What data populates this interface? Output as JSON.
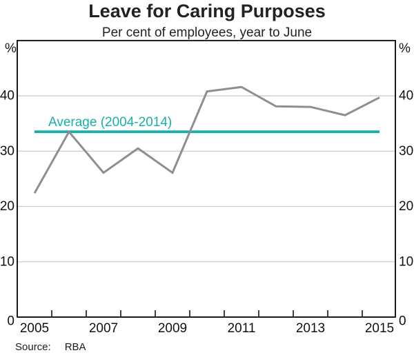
{
  "title": "Leave for Caring Purposes",
  "subtitle": "Per cent of employees, year to June",
  "source": {
    "label": "Source:",
    "value": "RBA"
  },
  "chart_data": {
    "type": "line",
    "title": "Leave for Caring Purposes",
    "subtitle": "Per cent of employees, year to June",
    "unit": "%",
    "x": [
      2005,
      2006,
      2007,
      2008,
      2009,
      2010,
      2011,
      2012,
      2013,
      2014,
      2015
    ],
    "series": [
      {
        "name": "Leave for caring purposes (per cent of employees)",
        "values": [
          22.4,
          33.5,
          26.1,
          30.5,
          26.1,
          40.8,
          41.6,
          38.1,
          38.0,
          36.5,
          39.7
        ],
        "color": "#8e8e8e"
      }
    ],
    "average_line": {
      "label": "Average (2004-2014)",
      "value": 33.5,
      "color": "#18b0a6",
      "x_start": 2005,
      "x_end": 2015
    },
    "ylim": [
      0,
      50
    ],
    "yticks": [
      0,
      10,
      20,
      30,
      40
    ],
    "xticks": [
      2005,
      2007,
      2009,
      2011,
      2013,
      2015
    ],
    "grid": true,
    "legend_position": "none",
    "gridline_color": "#cccccc",
    "axis_color": "#000000"
  }
}
